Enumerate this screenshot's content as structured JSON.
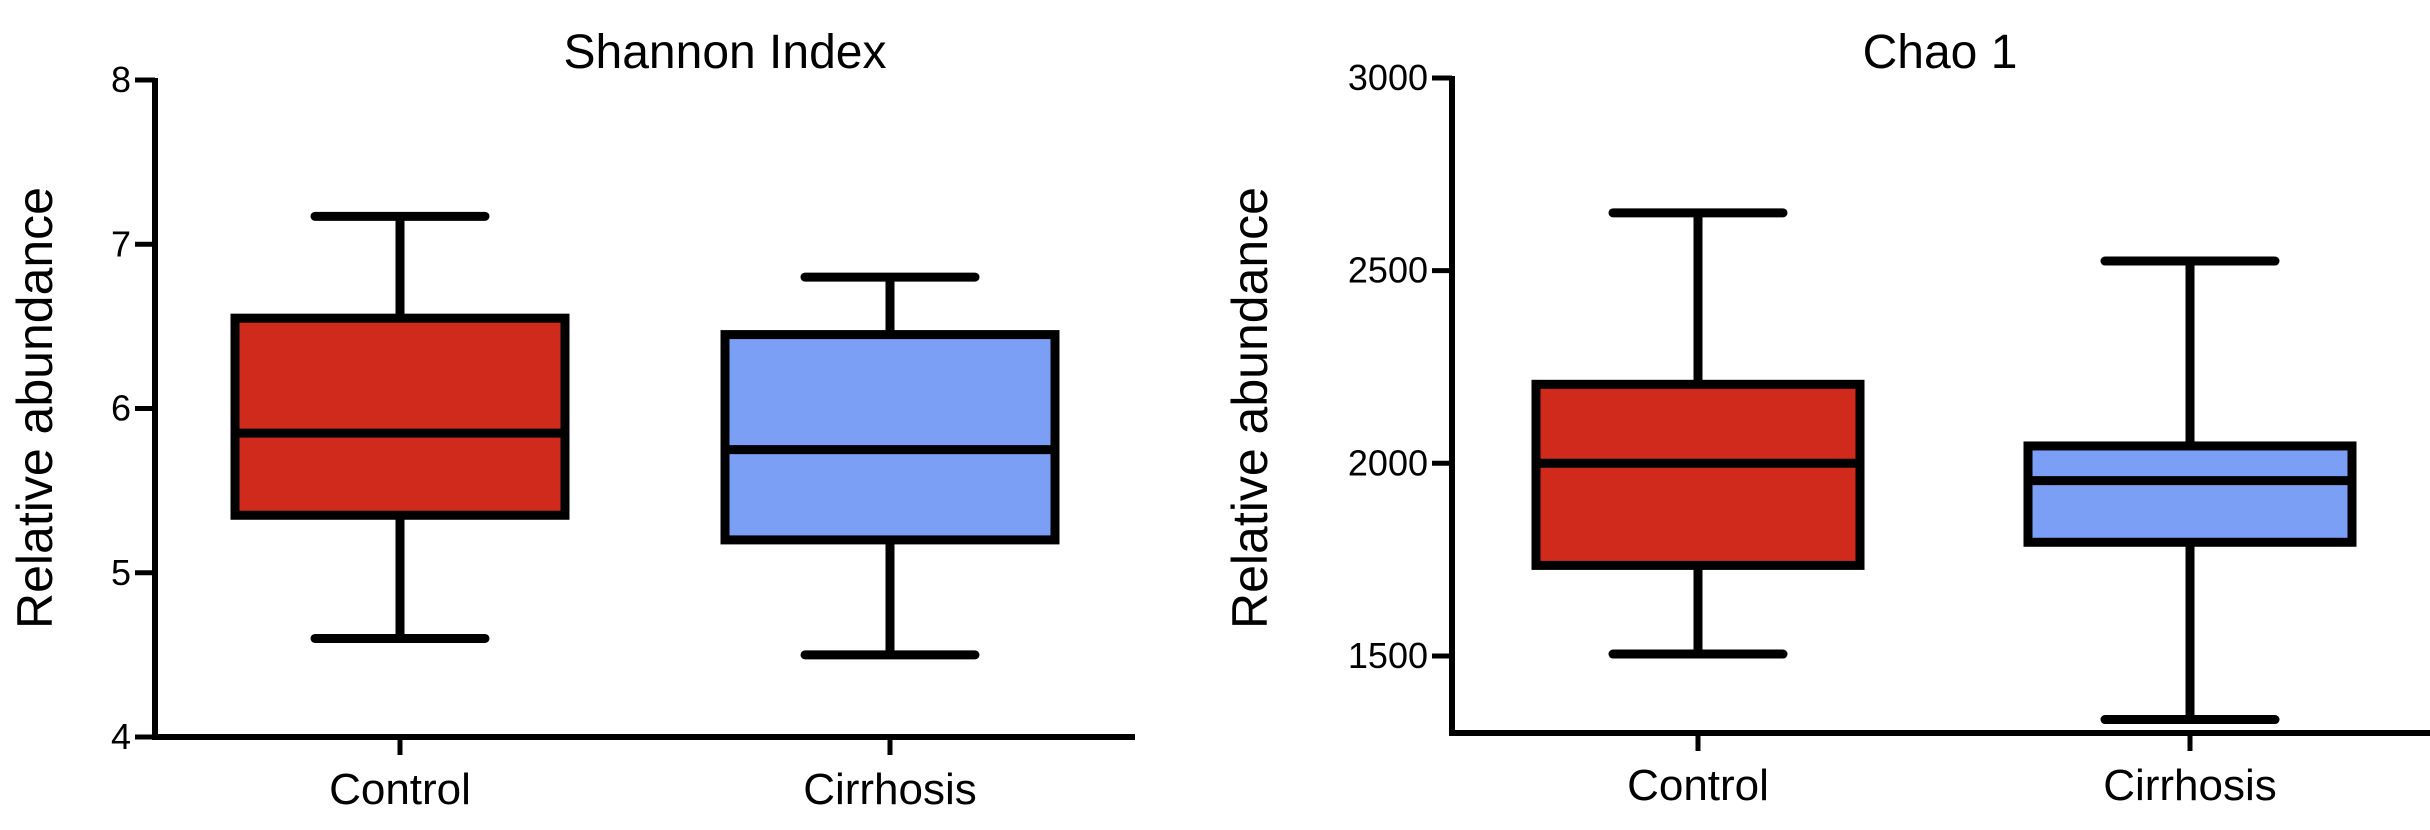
{
  "chart_data": [
    {
      "type": "box",
      "title": "Shannon Index",
      "xlabel": "",
      "ylabel": "Relative abundance",
      "ylim": [
        4,
        8
      ],
      "yticks": [
        4,
        5,
        6,
        7,
        8
      ],
      "categories": [
        "Control",
        "Cirrhosis"
      ],
      "boxes": [
        {
          "category": "Control",
          "min": 4.6,
          "q1": 5.35,
          "median": 5.85,
          "q3": 6.55,
          "max": 7.17,
          "color": "#cf2a1b"
        },
        {
          "category": "Cirrhosis",
          "min": 4.5,
          "q1": 5.2,
          "median": 5.75,
          "q3": 6.45,
          "max": 6.8,
          "color": "#7b9ff5"
        }
      ],
      "grid": false,
      "legend": "none"
    },
    {
      "type": "box",
      "title": "Chao 1",
      "xlabel": "",
      "ylabel": "Relative abundance",
      "ylim": [
        1300,
        3000
      ],
      "yticks": [
        1500,
        2000,
        2500,
        3000
      ],
      "categories": [
        "Control",
        "Cirrhosis"
      ],
      "boxes": [
        {
          "category": "Control",
          "min": 1505,
          "q1": 1735,
          "median": 2000,
          "q3": 2205,
          "max": 2650,
          "color": "#cf2a1b"
        },
        {
          "category": "Cirrhosis",
          "min": 1335,
          "q1": 1795,
          "median": 1955,
          "q3": 2045,
          "max": 2525,
          "color": "#7b9ff5"
        }
      ],
      "grid": false,
      "legend": "none"
    }
  ]
}
